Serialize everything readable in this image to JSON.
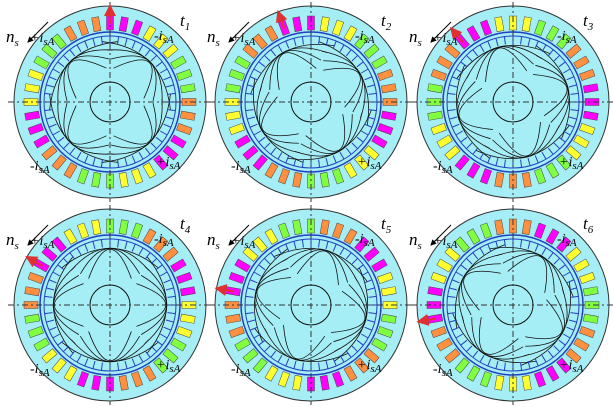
{
  "panels": [
    {
      "time": {
        "base": "t",
        "sub": "1"
      },
      "speed": {
        "base": "n",
        "sub": "s"
      },
      "currents": [
        {
          "sign": "+",
          "base": "i",
          "sub": "sA"
        },
        {
          "sign": "-",
          "base": "i",
          "sub": "sA"
        },
        {
          "sign": "-",
          "base": "i",
          "sub": "sA"
        },
        {
          "sign": "+",
          "base": "i",
          "sub": "sA"
        }
      ]
    },
    {
      "time": {
        "base": "t",
        "sub": "2"
      },
      "speed": {
        "base": "n",
        "sub": "s"
      },
      "currents": [
        {
          "sign": "+",
          "base": "i",
          "sub": "sA"
        },
        {
          "sign": "-",
          "base": "i",
          "sub": "sA"
        },
        {
          "sign": "-",
          "base": "i",
          "sub": "sA"
        },
        {
          "sign": "+",
          "base": "i",
          "sub": "sA"
        }
      ]
    },
    {
      "time": {
        "base": "t",
        "sub": "3"
      },
      "speed": {
        "base": "n",
        "sub": "s"
      },
      "currents": [
        {
          "sign": "+",
          "base": "i",
          "sub": "sA"
        },
        {
          "sign": "-",
          "base": "i",
          "sub": "sA"
        },
        {
          "sign": "-",
          "base": "i",
          "sub": "sA"
        },
        {
          "sign": "+",
          "base": "i",
          "sub": "sA"
        }
      ]
    },
    {
      "time": {
        "base": "t",
        "sub": "4"
      },
      "speed": {
        "base": "n",
        "sub": "s"
      },
      "currents": [
        {
          "sign": "+",
          "base": "i",
          "sub": "sA"
        },
        {
          "sign": "-",
          "base": "i",
          "sub": "sA"
        },
        {
          "sign": "-",
          "base": "i",
          "sub": "sA"
        },
        {
          "sign": "+",
          "base": "i",
          "sub": "sA"
        }
      ]
    },
    {
      "time": {
        "base": "t",
        "sub": "5"
      },
      "speed": {
        "base": "n",
        "sub": "s"
      },
      "currents": [
        {
          "sign": "+",
          "base": "i",
          "sub": "sA"
        },
        {
          "sign": "-",
          "base": "i",
          "sub": "sA"
        },
        {
          "sign": "-",
          "base": "i",
          "sub": "sA"
        },
        {
          "sign": "+",
          "base": "i",
          "sub": "sA"
        }
      ]
    },
    {
      "time": {
        "base": "t",
        "sub": "6"
      },
      "speed": {
        "base": "n",
        "sub": "s"
      },
      "currents": [
        {
          "sign": "+",
          "base": "i",
          "sub": "sA"
        },
        {
          "sign": "-",
          "base": "i",
          "sub": "sA"
        },
        {
          "sign": "-",
          "base": "i",
          "sub": "sA"
        },
        {
          "sign": "+",
          "base": "i",
          "sub": "sA"
        }
      ]
    }
  ]
}
